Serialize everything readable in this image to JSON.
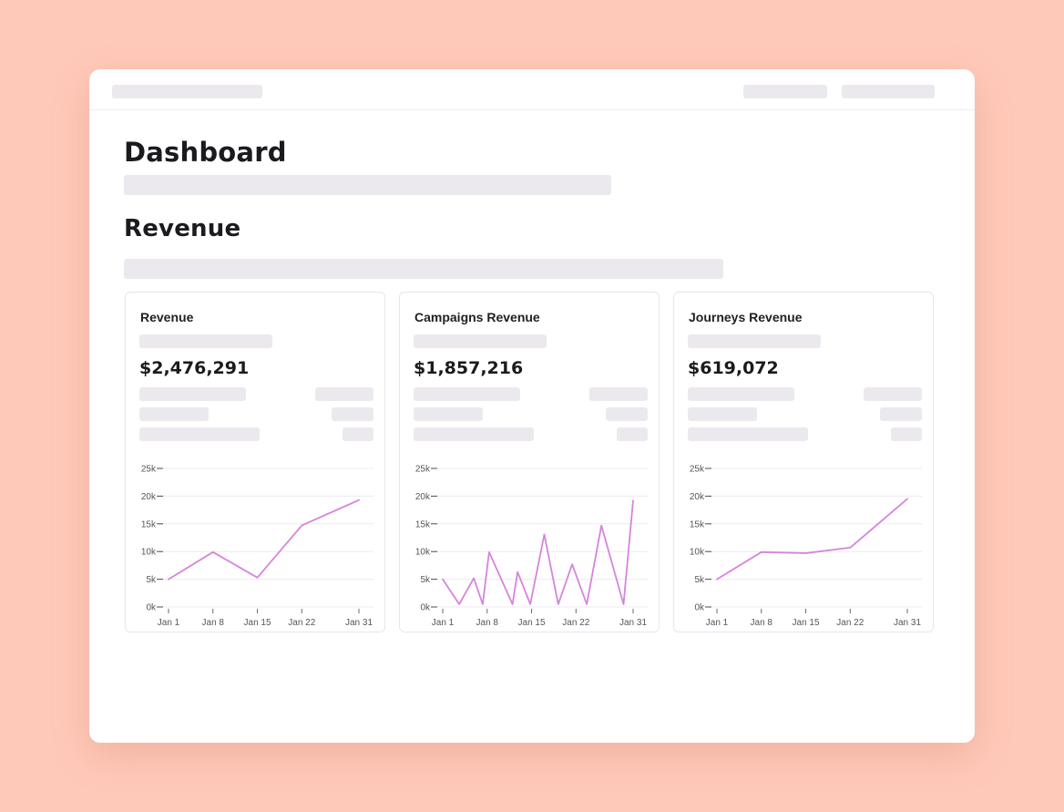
{
  "page": {
    "title": "Dashboard"
  },
  "section": {
    "title": "Revenue"
  },
  "cards": [
    {
      "title": "Revenue",
      "value": "$2,476,291"
    },
    {
      "title": "Campaigns Revenue",
      "value": "$1,857,216"
    },
    {
      "title": "Journeys Revenue",
      "value": "$619,072"
    }
  ],
  "colors": {
    "line": "#d684dd",
    "grid": "#ececf0",
    "background": "#ffc9b9"
  },
  "chart_data": [
    {
      "type": "line",
      "title": "Revenue",
      "xlim": [
        1,
        31
      ],
      "ylim": [
        0,
        25000
      ],
      "yticks": [
        0,
        5000,
        10000,
        15000,
        20000,
        25000
      ],
      "ytick_labels": [
        "0k",
        "5k",
        "10k",
        "15k",
        "20k",
        "25k"
      ],
      "xticks": [
        1,
        8,
        15,
        22,
        31
      ],
      "xtick_labels": [
        "Jan 1",
        "Jan 8",
        "Jan 15",
        "Jan 22",
        "Jan 31"
      ],
      "x": [
        1,
        8,
        15,
        22,
        31
      ],
      "y": [
        5000,
        9900,
        5300,
        14700,
        19300
      ]
    },
    {
      "type": "line",
      "title": "Campaigns Revenue",
      "xlim": [
        1,
        31
      ],
      "ylim": [
        0,
        25000
      ],
      "yticks": [
        0,
        5000,
        10000,
        15000,
        20000,
        25000
      ],
      "ytick_labels": [
        "0k",
        "5k",
        "10k",
        "15k",
        "20k",
        "25k"
      ],
      "xticks": [
        1,
        8,
        15,
        22,
        31
      ],
      "xtick_labels": [
        "Jan 1",
        "Jan 8",
        "Jan 15",
        "Jan 22",
        "Jan 31"
      ],
      "x": [
        1,
        3.6,
        5.9,
        7.3,
        8.3,
        12,
        12.8,
        14.8,
        17,
        19.2,
        21.4,
        23.7,
        26,
        29.5,
        31
      ],
      "y": [
        5000,
        500,
        5200,
        500,
        9900,
        500,
        6300,
        500,
        13100,
        500,
        7700,
        500,
        14700,
        500,
        19200
      ]
    },
    {
      "type": "line",
      "title": "Journeys Revenue",
      "xlim": [
        1,
        31
      ],
      "ylim": [
        0,
        25000
      ],
      "yticks": [
        0,
        5000,
        10000,
        15000,
        20000,
        25000
      ],
      "ytick_labels": [
        "0k",
        "5k",
        "10k",
        "15k",
        "20k",
        "25k"
      ],
      "xticks": [
        1,
        8,
        15,
        22,
        31
      ],
      "xtick_labels": [
        "Jan 1",
        "Jan 8",
        "Jan 15",
        "Jan 22",
        "Jan 31"
      ],
      "x": [
        1,
        8,
        15,
        22,
        31
      ],
      "y": [
        5000,
        9900,
        9700,
        10700,
        19500
      ]
    }
  ]
}
